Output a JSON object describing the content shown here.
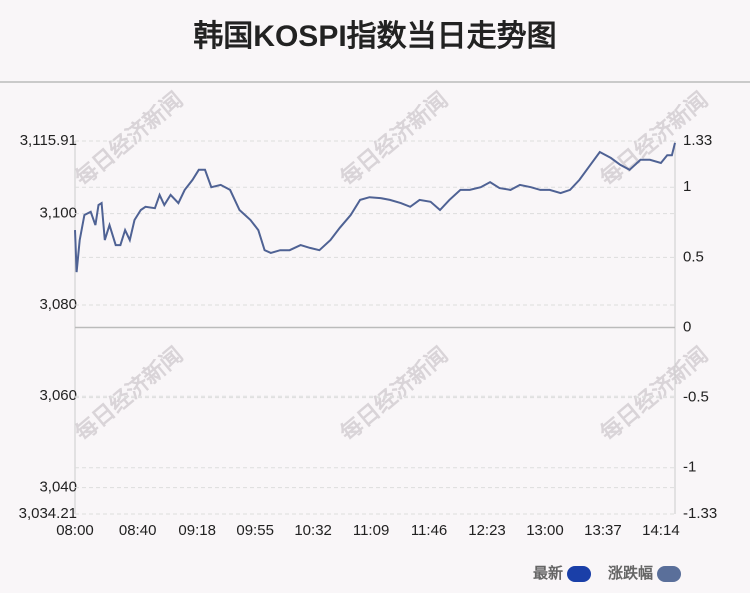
{
  "chart_data": {
    "type": "line",
    "title": "韩国KOSPI指数当日走势图",
    "watermark": "每日经济新闻",
    "xlim": [
      "08:00",
      "14:23"
    ],
    "xticks": [
      "08:00",
      "08:40",
      "09:18",
      "09:55",
      "10:32",
      "11:09",
      "11:46",
      "12:23",
      "13:00",
      "13:37",
      "14:14"
    ],
    "ylim": [
      3034.21,
      3115.91
    ],
    "yticks": [
      {
        "value": 3034.21,
        "label": "3,034.21"
      },
      {
        "value": 3040,
        "label": "3,040"
      },
      {
        "value": 3060,
        "label": "3,060"
      },
      {
        "value": 3080,
        "label": "3,080"
      },
      {
        "value": 3100,
        "label": "3,100"
      },
      {
        "value": 3115.91,
        "label": "3,115.91"
      }
    ],
    "y2lim": [
      -1.33,
      1.33
    ],
    "y2ticks": [
      -1.33,
      -1,
      -0.5,
      0,
      0.5,
      1,
      1.33
    ],
    "grid": true,
    "legend": [
      {
        "name": "最新",
        "color": "#1a3fa8"
      },
      {
        "name": "涨跌幅",
        "color": "#5a6f9a"
      }
    ],
    "x": [
      "08:00",
      "08:01",
      "08:03",
      "08:06",
      "08:10",
      "08:13",
      "08:15",
      "08:17",
      "08:19",
      "08:22",
      "08:26",
      "08:29",
      "08:32",
      "08:35",
      "08:38",
      "08:42",
      "08:45",
      "08:51",
      "08:54",
      "08:57",
      "09:01",
      "09:06",
      "09:10",
      "09:15",
      "09:19",
      "09:23",
      "09:27",
      "09:33",
      "09:39",
      "09:45",
      "09:52",
      "09:57",
      "10:01",
      "10:05",
      "10:11",
      "10:17",
      "10:24",
      "10:30",
      "10:36",
      "10:43",
      "10:49",
      "10:56",
      "11:02",
      "11:08",
      "11:15",
      "11:21",
      "11:28",
      "11:34",
      "11:40",
      "11:47",
      "11:53",
      "11:59",
      "12:06",
      "12:12",
      "12:19",
      "12:25",
      "12:31",
      "12:38",
      "12:44",
      "12:51",
      "12:57",
      "13:03",
      "13:10",
      "13:16",
      "13:22",
      "13:29",
      "13:35",
      "13:42",
      "13:48",
      "13:54",
      "14:01",
      "14:07",
      "14:14",
      "14:18",
      "14:21",
      "14:23"
    ],
    "series": [
      {
        "name": "最新",
        "color": "#4f6294",
        "values": [
          3096.4,
          3087.2,
          3094.2,
          3099.7,
          3100.4,
          3097.5,
          3101.9,
          3102.3,
          3094.2,
          3097.5,
          3093.1,
          3093.1,
          3096.4,
          3094.2,
          3098.6,
          3100.8,
          3101.5,
          3101.2,
          3104.1,
          3101.9,
          3104.1,
          3102.3,
          3105.2,
          3107.4,
          3109.6,
          3109.6,
          3105.8,
          3106.3,
          3105.2,
          3100.8,
          3098.6,
          3096.4,
          3092.0,
          3091.4,
          3092.0,
          3092.0,
          3093.1,
          3092.5,
          3092.0,
          3094.2,
          3096.9,
          3099.7,
          3103.0,
          3103.6,
          3103.4,
          3103.0,
          3102.3,
          3101.5,
          3103.0,
          3102.6,
          3100.8,
          3103.0,
          3105.2,
          3105.2,
          3105.8,
          3106.9,
          3105.6,
          3105.2,
          3106.3,
          3105.8,
          3105.2,
          3105.2,
          3104.5,
          3105.2,
          3107.4,
          3110.7,
          3113.5,
          3112.2,
          3110.7,
          3109.6,
          3111.8,
          3111.8,
          3111.1,
          3112.8,
          3112.8,
          3115.5
        ]
      }
    ]
  }
}
